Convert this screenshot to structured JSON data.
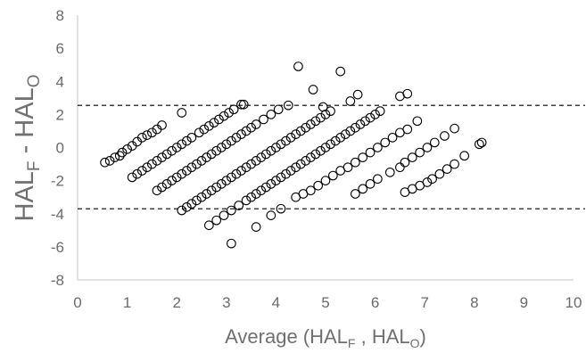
{
  "chart_data": {
    "type": "scatter",
    "xlabel": {
      "prefix": "Average (HAL",
      "sub1": "F",
      "mid": " , HAL",
      "sub2": "O",
      "suffix": ")"
    },
    "ylabel": {
      "prefix": "HAL",
      "sub1": "F",
      "mid": " - HAL",
      "sub2": "O"
    },
    "xlim": [
      0,
      10
    ],
    "ylim": [
      -8,
      8
    ],
    "x_ticks": [
      "0",
      "1",
      "2",
      "3",
      "4",
      "5",
      "6",
      "7",
      "8",
      "9",
      "10"
    ],
    "y_ticks": [
      "8",
      "6",
      "4",
      "2",
      "0",
      "-2",
      "-4",
      "-6",
      "-8"
    ],
    "grid": false,
    "legend": "none",
    "reference_lines": [
      {
        "y": 2.55,
        "style": "dashed"
      },
      {
        "y": -3.7,
        "style": "dashed"
      }
    ],
    "series": [
      {
        "marker": "open-circle",
        "points": [
          [
            0.55,
            -0.9
          ],
          [
            0.65,
            -0.8
          ],
          [
            0.75,
            -0.6
          ],
          [
            0.85,
            -0.5
          ],
          [
            0.9,
            -0.3
          ],
          [
            1.0,
            -0.1
          ],
          [
            1.1,
            0.1
          ],
          [
            1.2,
            0.35
          ],
          [
            1.3,
            0.6
          ],
          [
            1.4,
            0.75
          ],
          [
            1.5,
            0.9
          ],
          [
            1.6,
            1.1
          ],
          [
            1.7,
            1.35
          ],
          [
            1.1,
            -1.8
          ],
          [
            1.2,
            -1.6
          ],
          [
            1.3,
            -1.4
          ],
          [
            1.4,
            -1.2
          ],
          [
            1.5,
            -1.0
          ],
          [
            1.6,
            -0.8
          ],
          [
            1.7,
            -0.6
          ],
          [
            1.8,
            -0.4
          ],
          [
            1.9,
            -0.2
          ],
          [
            2.0,
            0.0
          ],
          [
            2.1,
            0.2
          ],
          [
            2.2,
            0.4
          ],
          [
            2.3,
            0.6
          ],
          [
            2.45,
            0.9
          ],
          [
            2.55,
            1.1
          ],
          [
            2.65,
            1.3
          ],
          [
            2.75,
            1.5
          ],
          [
            2.85,
            1.7
          ],
          [
            2.95,
            1.9
          ],
          [
            3.05,
            2.1
          ],
          [
            3.15,
            2.3
          ],
          [
            3.3,
            2.6
          ],
          [
            1.6,
            -2.6
          ],
          [
            1.7,
            -2.4
          ],
          [
            1.8,
            -2.2
          ],
          [
            1.9,
            -2.0
          ],
          [
            2.0,
            -1.8
          ],
          [
            2.1,
            -1.6
          ],
          [
            2.2,
            -1.4
          ],
          [
            2.3,
            -1.2
          ],
          [
            2.4,
            -1.0
          ],
          [
            2.5,
            -0.8
          ],
          [
            2.6,
            -0.6
          ],
          [
            2.7,
            -0.4
          ],
          [
            2.8,
            -0.2
          ],
          [
            2.9,
            0.0
          ],
          [
            3.0,
            0.2
          ],
          [
            3.1,
            0.4
          ],
          [
            3.2,
            0.6
          ],
          [
            3.3,
            0.8
          ],
          [
            3.4,
            1.0
          ],
          [
            3.5,
            1.2
          ],
          [
            3.6,
            1.4
          ],
          [
            3.75,
            1.7
          ],
          [
            3.9,
            2.0
          ],
          [
            4.05,
            2.3
          ],
          [
            2.1,
            -3.8
          ],
          [
            2.2,
            -3.6
          ],
          [
            2.3,
            -3.4
          ],
          [
            2.4,
            -3.2
          ],
          [
            2.5,
            -3.0
          ],
          [
            2.6,
            -2.8
          ],
          [
            2.7,
            -2.6
          ],
          [
            2.8,
            -2.4
          ],
          [
            2.9,
            -2.2
          ],
          [
            3.0,
            -2.0
          ],
          [
            3.1,
            -1.8
          ],
          [
            3.2,
            -1.6
          ],
          [
            3.3,
            -1.4
          ],
          [
            3.4,
            -1.2
          ],
          [
            3.5,
            -1.0
          ],
          [
            3.6,
            -0.8
          ],
          [
            3.7,
            -0.6
          ],
          [
            3.8,
            -0.4
          ],
          [
            3.9,
            -0.2
          ],
          [
            4.0,
            0.0
          ],
          [
            4.1,
            0.2
          ],
          [
            4.2,
            0.4
          ],
          [
            4.3,
            0.6
          ],
          [
            4.4,
            0.8
          ],
          [
            4.5,
            1.0
          ],
          [
            4.6,
            1.2
          ],
          [
            4.7,
            1.4
          ],
          [
            4.8,
            1.6
          ],
          [
            4.9,
            1.8
          ],
          [
            5.0,
            2.0
          ],
          [
            5.1,
            2.2
          ],
          [
            2.65,
            -4.7
          ],
          [
            2.8,
            -4.4
          ],
          [
            2.95,
            -4.1
          ],
          [
            3.1,
            -3.8
          ],
          [
            3.25,
            -3.5
          ],
          [
            3.4,
            -3.2
          ],
          [
            3.5,
            -3.0
          ],
          [
            3.6,
            -2.8
          ],
          [
            3.7,
            -2.6
          ],
          [
            3.8,
            -2.4
          ],
          [
            3.9,
            -2.2
          ],
          [
            4.0,
            -2.0
          ],
          [
            4.1,
            -1.8
          ],
          [
            4.2,
            -1.6
          ],
          [
            4.3,
            -1.4
          ],
          [
            4.4,
            -1.2
          ],
          [
            4.5,
            -1.0
          ],
          [
            4.6,
            -0.8
          ],
          [
            4.7,
            -0.6
          ],
          [
            4.8,
            -0.4
          ],
          [
            4.9,
            -0.2
          ],
          [
            5.0,
            0.0
          ],
          [
            5.1,
            0.2
          ],
          [
            5.2,
            0.4
          ],
          [
            5.3,
            0.6
          ],
          [
            5.4,
            0.8
          ],
          [
            5.5,
            1.0
          ],
          [
            5.6,
            1.2
          ],
          [
            5.7,
            1.4
          ],
          [
            5.8,
            1.6
          ],
          [
            5.9,
            1.8
          ],
          [
            6.0,
            2.0
          ],
          [
            6.1,
            2.2
          ],
          [
            3.1,
            -5.8
          ],
          [
            3.6,
            -4.8
          ],
          [
            3.9,
            -4.1
          ],
          [
            4.1,
            -3.7
          ],
          [
            4.4,
            -3.0
          ],
          [
            4.55,
            -2.8
          ],
          [
            4.7,
            -2.6
          ],
          [
            4.85,
            -2.3
          ],
          [
            5.0,
            -2.0
          ],
          [
            5.15,
            -1.7
          ],
          [
            5.3,
            -1.4
          ],
          [
            5.45,
            -1.2
          ],
          [
            5.6,
            -0.9
          ],
          [
            5.75,
            -0.6
          ],
          [
            5.9,
            -0.3
          ],
          [
            6.05,
            0.0
          ],
          [
            6.2,
            0.3
          ],
          [
            6.35,
            0.6
          ],
          [
            6.5,
            0.9
          ],
          [
            6.65,
            1.1
          ],
          [
            6.85,
            1.6
          ],
          [
            5.6,
            -2.8
          ],
          [
            5.75,
            -2.5
          ],
          [
            5.9,
            -2.2
          ],
          [
            6.05,
            -1.9
          ],
          [
            6.3,
            -1.5
          ],
          [
            6.5,
            -1.2
          ],
          [
            6.6,
            -0.9
          ],
          [
            6.75,
            -0.6
          ],
          [
            6.9,
            -0.3
          ],
          [
            7.05,
            0.0
          ],
          [
            7.2,
            0.3
          ],
          [
            7.4,
            0.7
          ],
          [
            7.6,
            1.15
          ],
          [
            6.6,
            -2.7
          ],
          [
            6.75,
            -2.5
          ],
          [
            6.9,
            -2.3
          ],
          [
            7.05,
            -2.1
          ],
          [
            7.15,
            -1.9
          ],
          [
            7.3,
            -1.6
          ],
          [
            7.45,
            -1.3
          ],
          [
            7.6,
            -1.0
          ],
          [
            7.8,
            -0.5
          ],
          [
            8.1,
            0.2
          ],
          [
            8.15,
            0.3
          ],
          [
            4.45,
            4.9
          ],
          [
            5.3,
            4.6
          ],
          [
            4.75,
            3.5
          ],
          [
            5.65,
            3.2
          ],
          [
            6.5,
            3.1
          ],
          [
            6.65,
            3.25
          ],
          [
            4.25,
            2.55
          ],
          [
            3.35,
            2.6
          ],
          [
            2.1,
            2.1
          ],
          [
            5.5,
            2.8
          ],
          [
            4.95,
            2.45
          ]
        ]
      }
    ]
  }
}
